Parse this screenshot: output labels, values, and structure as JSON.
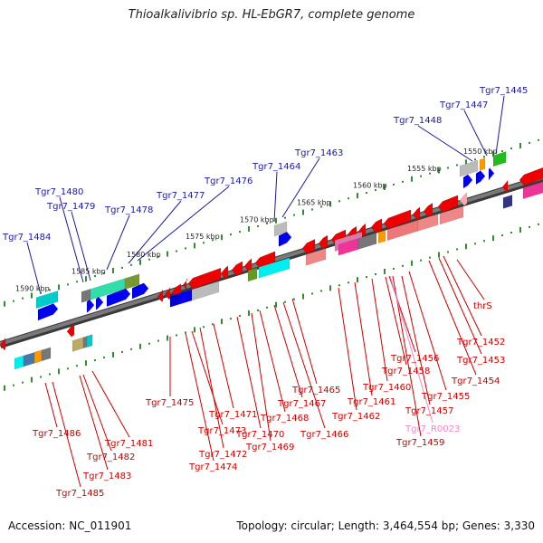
{
  "title": "Thioalkalivibrio sp. HL-EbGR7, complete genome",
  "footer": {
    "accession": "Accession: NC_011901",
    "topology": "Topology: circular; Length: 3,464,554 bp; Genes: 3,330"
  },
  "colors": {
    "forward_label": "#1a1aa0",
    "reverse_label": "#cc0000",
    "rna_label": "#ee88cc",
    "backbone": "#7a7a7a",
    "scale_dots": "#2f8f2f"
  },
  "kbp_labels": [
    "1550 kbp",
    "1555 kbp",
    "1560 kbp",
    "1565 kbp",
    "1570 kbp",
    "1575 kbp",
    "1580 kbp",
    "1585 kbp",
    "1590 kbp"
  ],
  "forward_genes": [
    "Tgr7_1445",
    "Tgr7_1447",
    "Tgr7_1448",
    "Tgr7_1463",
    "Tgr7_1464",
    "Tgr7_1476",
    "Tgr7_1477",
    "Tgr7_1478",
    "Tgr7_1479",
    "Tgr7_1480",
    "Tgr7_1484"
  ],
  "reverse_genes": [
    "thrS",
    "Tgr7_1452",
    "Tgr7_1453",
    "Tgr7_1454",
    "Tgr7_1455",
    "Tgr7_1456",
    "Tgr7_1457",
    "Tgr7_1458",
    "Tgr7_1459",
    "Tgr7_1460",
    "Tgr7_1461",
    "Tgr7_1462",
    "Tgr7_1465",
    "Tgr7_1466",
    "Tgr7_1467",
    "Tgr7_1468",
    "Tgr7_1469",
    "Tgr7_1470",
    "Tgr7_1471",
    "Tgr7_1472",
    "Tgr7_1473",
    "Tgr7_1474",
    "Tgr7_1475",
    "Tgr7_1481",
    "Tgr7_1482",
    "Tgr7_1483",
    "Tgr7_1485",
    "Tgr7_1486"
  ],
  "rna_genes": [
    "Tgr7_R0023"
  ]
}
